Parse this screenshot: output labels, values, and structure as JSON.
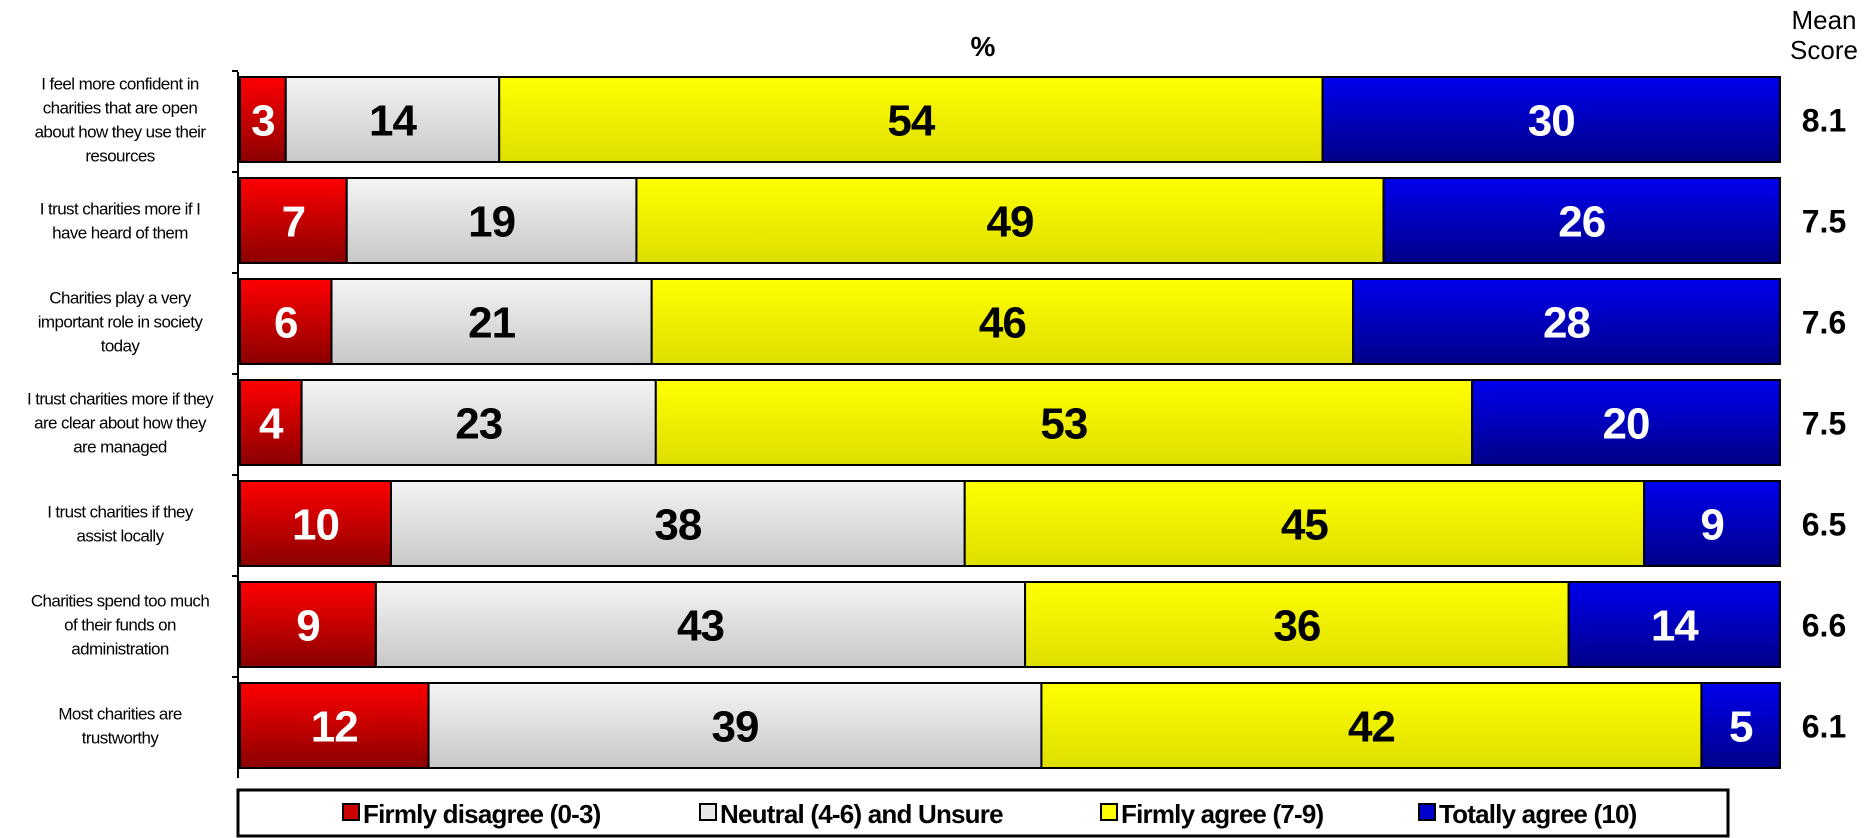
{
  "chart_data": {
    "type": "bar",
    "orientation": "horizontal",
    "stacked": true,
    "unit_label": "%",
    "mean_header": [
      "Mean",
      "Score"
    ],
    "categories": [
      "I feel more confident in charities that are open about how they use their resources",
      "I trust charities more if I have heard of them",
      "Charities play a very important role in society today",
      "I trust charities more if they are clear about how they are managed",
      "I trust charities if they assist locally",
      "Charities spend too much of their funds on administration",
      "Most charities are trustworthy"
    ],
    "category_lines": [
      [
        "I feel more confident in",
        "charities that are open",
        "about how they use their",
        "resources"
      ],
      [
        "I trust charities more if I",
        "have heard of them"
      ],
      [
        "Charities play a very",
        "important role in society",
        "today"
      ],
      [
        "I trust charities more if they",
        "are clear about how they",
        "are managed"
      ],
      [
        "I trust charities if they",
        "assist locally"
      ],
      [
        "Charities spend too much",
        "of their funds on",
        "administration"
      ],
      [
        "Most charities are",
        "trustworthy"
      ]
    ],
    "series": [
      {
        "name": "Firmly disagree (0-3)",
        "values": [
          3,
          7,
          6,
          4,
          10,
          9,
          12
        ],
        "color": "#cc0000",
        "label_color": "#ffffff"
      },
      {
        "name": "Neutral (4-6) and Unsure",
        "values": [
          14,
          19,
          21,
          23,
          38,
          43,
          39
        ],
        "color": "#e8e8e8",
        "label_color": "#000000"
      },
      {
        "name": "Firmly agree (7-9)",
        "values": [
          54,
          49,
          46,
          53,
          45,
          36,
          42
        ],
        "color": "#ffff00",
        "label_color": "#000000"
      },
      {
        "name": "Totally agree (10)",
        "values": [
          30,
          26,
          28,
          20,
          9,
          14,
          5
        ],
        "color": "#0000cc",
        "label_color": "#ffffff"
      }
    ],
    "mean_scores": [
      "8.1",
      "7.5",
      "7.6",
      "7.5",
      "6.5",
      "6.6",
      "6.1"
    ],
    "legend_position": "bottom",
    "grid": false
  }
}
